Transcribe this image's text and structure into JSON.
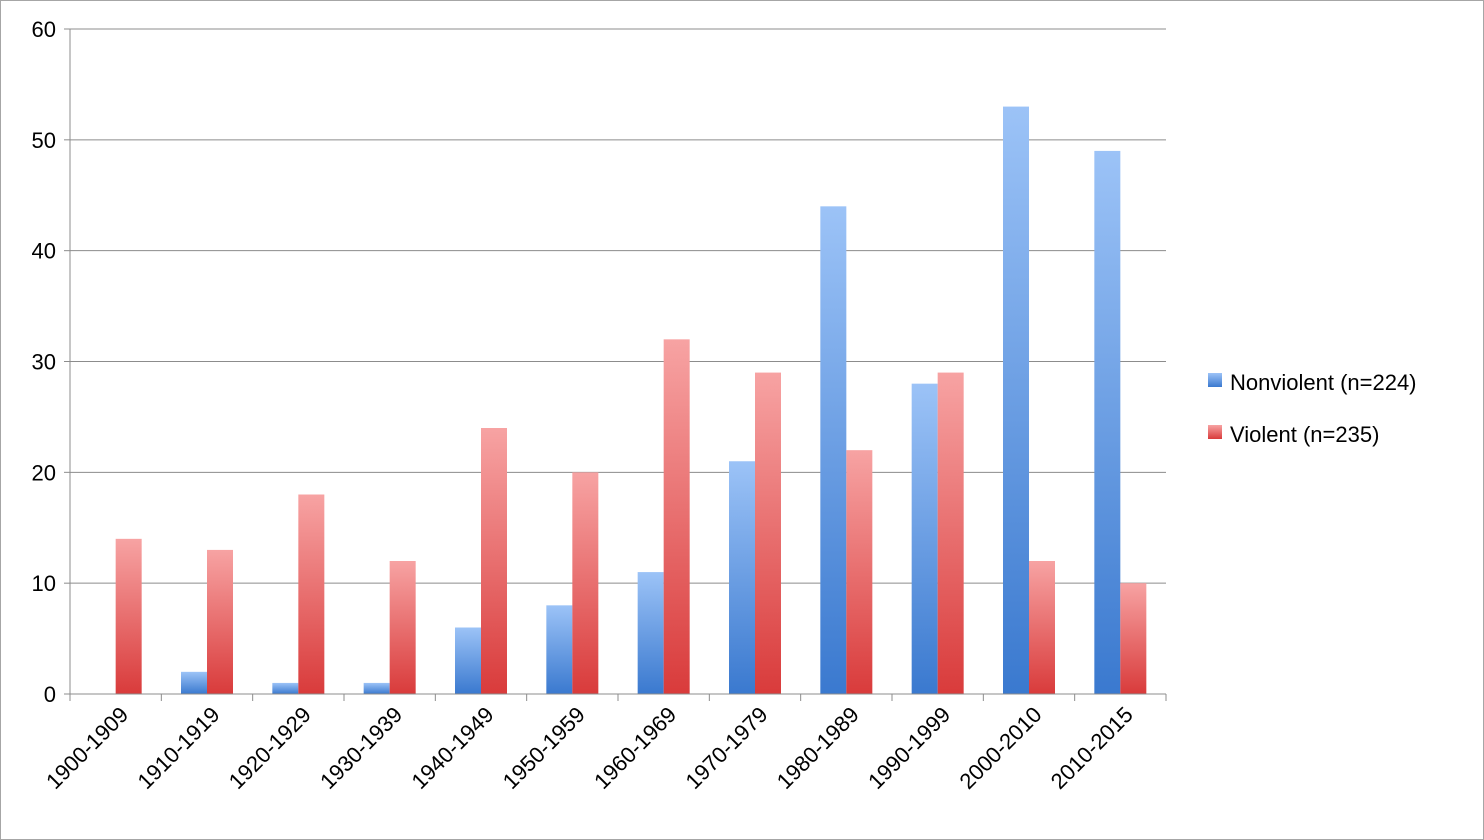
{
  "chart_data": {
    "type": "bar",
    "title": "",
    "xlabel": "",
    "ylabel": "",
    "ylim": [
      0,
      60
    ],
    "yticks": [
      "0",
      "10",
      "20",
      "30",
      "40",
      "50",
      "60"
    ],
    "grid": "horizontal",
    "legend_position": "right",
    "categories": [
      "1900-1909",
      "1910-1919",
      "1920-1929",
      "1930-1939",
      "1940-1949",
      "1950-1959",
      "1960-1969",
      "1970-1979",
      "1980-1989",
      "1990-1999",
      "2000-2010",
      "2010-2015"
    ],
    "series": [
      {
        "name": "Nonviolent (n=224)",
        "color": "#4a86d6",
        "values": [
          0,
          2,
          1,
          1,
          6,
          8,
          11,
          21,
          44,
          28,
          53,
          49
        ]
      },
      {
        "name": "Violent (n=235)",
        "color": "#e04a4a",
        "values": [
          14,
          13,
          18,
          12,
          24,
          20,
          32,
          29,
          22,
          29,
          12,
          10
        ]
      }
    ]
  }
}
